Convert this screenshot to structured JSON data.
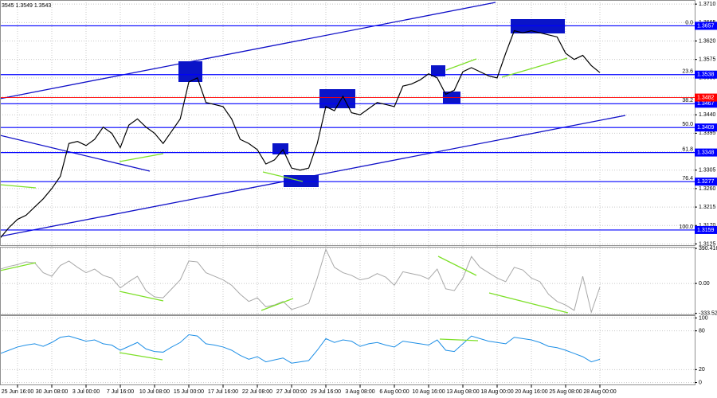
{
  "chart_data": [
    {
      "type": "line",
      "title": "3545 1.3549 1.3543",
      "color": "#000000",
      "grid": true,
      "categories": [
        null,
        null,
        "25 Jun 16:00",
        null,
        null,
        null,
        "30 Jun 08:00",
        null,
        null,
        null,
        "3 Jul 00:00",
        null,
        null,
        null,
        "7 Jul 16:00",
        null,
        null,
        null,
        "10 Jul 08:00",
        null,
        null,
        null,
        "15 Jul 00:00",
        null,
        null,
        null,
        "17 Jul 16:00",
        null,
        null,
        null,
        "22 Jul 08:00",
        null,
        null,
        null,
        "27 Jul 00:00",
        null,
        null,
        null,
        "29 Jul 16:00",
        null,
        null,
        null,
        "3 Aug 08:00",
        null,
        null,
        null,
        "6 Aug 00:00",
        null,
        null,
        null,
        "10 Aug 16:00",
        null,
        null,
        null,
        "13 Aug 08:00",
        null,
        null,
        null,
        "18 Aug 00:00",
        null,
        null,
        null,
        "20 Aug 16:00",
        null,
        null,
        null,
        "25 Aug 08:00",
        null,
        null,
        null,
        "28 Aug 00:00"
      ],
      "values": [
        1.314,
        1.3165,
        1.3185,
        1.3195,
        1.3215,
        1.3235,
        1.326,
        1.329,
        1.337,
        1.3375,
        1.3365,
        1.338,
        1.341,
        1.3395,
        1.336,
        1.3415,
        1.343,
        1.341,
        1.3395,
        1.337,
        1.34,
        1.343,
        1.352,
        1.353,
        1.347,
        1.3465,
        1.346,
        1.343,
        1.338,
        1.337,
        1.3355,
        1.332,
        1.333,
        1.3355,
        1.331,
        1.3305,
        1.331,
        1.337,
        1.346,
        1.345,
        1.3485,
        1.3445,
        1.344,
        1.3455,
        1.347,
        1.3465,
        1.346,
        1.351,
        1.3515,
        1.3525,
        1.354,
        1.353,
        1.349,
        1.35,
        1.3545,
        1.3555,
        1.3545,
        1.3535,
        1.353,
        1.359,
        1.3645,
        1.364,
        1.3645,
        1.364,
        1.3635,
        1.363,
        1.359,
        1.3575,
        1.3585,
        1.356,
        1.3543
      ],
      "ylim": [
        1.3122,
        1.372
      ],
      "yticks": [
        {
          "value": 1.371,
          "label": "1.3710"
        },
        1.3665,
        {
          "value": 1.362,
          "label": "1.3620"
        },
        1.3575,
        {
          "value": 1.353,
          "label": "1.3530"
        },
        1.3485,
        {
          "value": 1.344,
          "label": "1.3440"
        },
        1.3395,
        {
          "value": 1.335,
          "label": "1.3350"
        },
        1.3305,
        {
          "value": 1.326,
          "label": "1.3260"
        },
        1.3215,
        {
          "value": 1.317,
          "label": "1.3170"
        },
        1.3125
      ],
      "levels": [
        {
          "ratio": "0.0",
          "value": 1.3657
        },
        {
          "ratio": "23.6",
          "value": 1.3538
        },
        {
          "ratio": "38.2",
          "value": 1.3467
        },
        {
          "ratio": "50.0",
          "value": 1.3409
        },
        {
          "ratio": "61.8",
          "value": 1.3348
        },
        {
          "ratio": "76.4",
          "value": 1.3277
        },
        {
          "ratio": "100.0",
          "value": 1.3159
        }
      ],
      "level_color": "#0000ff",
      "marker_level": {
        "value": 1.3482,
        "color": "#ff0000"
      }
    },
    {
      "type": "line",
      "color": "#a8a8a8",
      "values": [
        160,
        190,
        210,
        240,
        230,
        120,
        80,
        200,
        250,
        180,
        120,
        160,
        90,
        60,
        -50,
        20,
        80,
        -80,
        -150,
        -160,
        -60,
        40,
        250,
        240,
        120,
        80,
        40,
        -20,
        -120,
        -200,
        -160,
        -260,
        -240,
        -200,
        -290,
        -260,
        -220,
        60,
        380,
        180,
        120,
        90,
        40,
        60,
        110,
        70,
        -20,
        130,
        110,
        90,
        50,
        160,
        -60,
        -80,
        60,
        300,
        180,
        120,
        60,
        20,
        180,
        150,
        60,
        20,
        -120,
        -200,
        -240,
        -300,
        80,
        -320,
        -40
      ],
      "ylim": [
        -345,
        400
      ],
      "yticks": [
        390.4163,
        {
          "value": 0,
          "label": "0.00"
        },
        -333.522
      ]
    },
    {
      "type": "line",
      "color": "#1e8fe6",
      "values": [
        45,
        50,
        55,
        58,
        60,
        56,
        62,
        70,
        72,
        68,
        64,
        66,
        60,
        58,
        50,
        56,
        62,
        52,
        48,
        47,
        55,
        62,
        74,
        72,
        60,
        58,
        55,
        50,
        42,
        36,
        40,
        32,
        35,
        38,
        30,
        32,
        34,
        50,
        68,
        62,
        66,
        64,
        56,
        60,
        62,
        58,
        55,
        64,
        62,
        60,
        58,
        66,
        50,
        48,
        60,
        72,
        68,
        64,
        62,
        60,
        70,
        68,
        66,
        62,
        56,
        54,
        50,
        45,
        40,
        32,
        36
      ],
      "ylim": [
        -3,
        103
      ],
      "yticks": [
        100,
        80,
        20,
        0
      ]
    }
  ]
}
